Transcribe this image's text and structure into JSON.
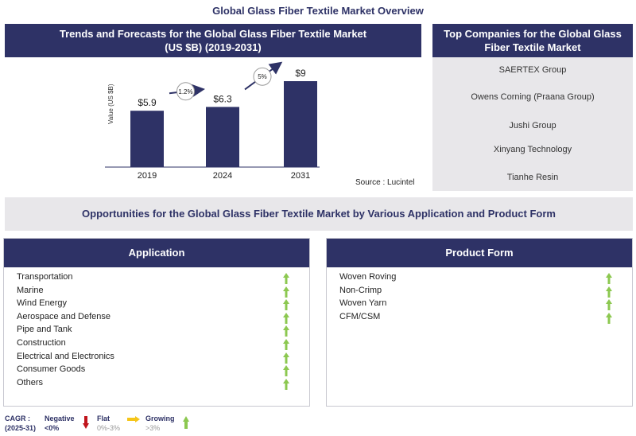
{
  "title": "Global Glass Fiber Textile Market Overview",
  "chart_panel": {
    "title": "Trends and Forecasts for the Global Glass Fiber Textile Market",
    "subtitle": "(US $B) (2019-2031)",
    "source": "Source : Lucintel"
  },
  "chart_data": {
    "type": "bar",
    "categories": [
      "2019",
      "2024",
      "2031"
    ],
    "values": [
      5.9,
      6.3,
      9
    ],
    "data_labels": [
      "$5.9",
      "$6.3",
      "$9"
    ],
    "ylabel": "Value (US $B)",
    "ylim": [
      0,
      9.5
    ],
    "grid": false,
    "annotations": [
      {
        "from": "2019",
        "to": "2024",
        "label": "1.2%"
      },
      {
        "from": "2024",
        "to": "2031",
        "label": "5%"
      }
    ],
    "bar_color": "#2e3266"
  },
  "companies": {
    "title": "Top Companies for the Global Glass Fiber Textile Market",
    "items": [
      "SAERTEX Group",
      "Owens Corning (Praana Group)",
      "Jushi Group",
      "Xinyang Technology",
      "Tianhe Resin"
    ]
  },
  "opportunities": {
    "title": "Opportunities for the Global Glass Fiber Textile Market  by Various Application and Product Form"
  },
  "application": {
    "title": "Application",
    "items": [
      "Transportation",
      "Marine",
      "Wind Energy",
      "Aerospace and Defense",
      "Pipe and Tank",
      "Construction",
      "Electrical and Electronics",
      "Consumer Goods",
      "Others"
    ],
    "trend": "growing"
  },
  "product_form": {
    "title": "Product Form",
    "items": [
      "Woven Roving",
      "Non-Crimp",
      "Woven Yarn",
      "CFM/CSM"
    ],
    "trend": "growing"
  },
  "legend": {
    "cagr": "CAGR :",
    "period": "(2025-31)",
    "negative": "Negative",
    "negative_range": "<0%",
    "flat": "Flat",
    "flat_range": "0%-3%",
    "growing": "Growing",
    "growing_range": ">3%",
    "colors": {
      "negative": "#c0141c",
      "flat": "#f5c518",
      "growing": "#8cc850"
    }
  }
}
